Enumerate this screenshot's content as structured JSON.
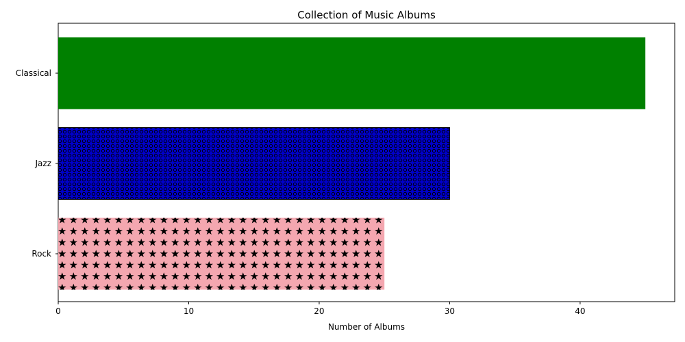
{
  "chart_data": {
    "type": "bar",
    "orientation": "horizontal",
    "title": "Collection of Music Albums",
    "xlabel": "Number of Albums",
    "ylabel": "",
    "categories": [
      "Rock",
      "Jazz",
      "Classical"
    ],
    "values": [
      25,
      30,
      45
    ],
    "colors": [
      "#f4a7b0",
      "#0000ff",
      "#008000"
    ],
    "hatches": [
      "stars",
      "circles",
      "none"
    ],
    "xlim": [
      0,
      47.25
    ],
    "xticks": [
      0,
      10,
      20,
      30,
      40
    ],
    "grid": false
  }
}
